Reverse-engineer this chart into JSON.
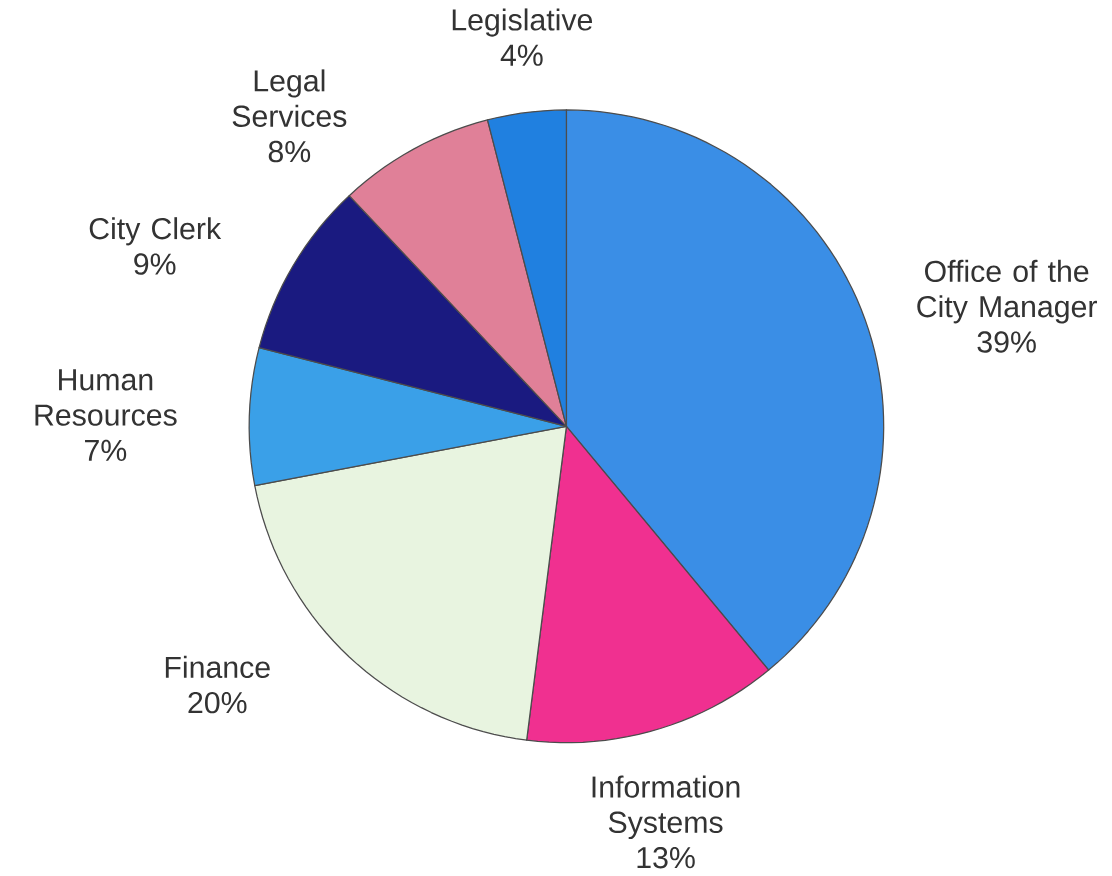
{
  "chart_data": {
    "type": "pie",
    "categories": [
      "Office of the City Manager",
      "Information Systems",
      "Finance",
      "Human Resources",
      "City Clerk",
      "Legal Services",
      "Legislative"
    ],
    "values": [
      39,
      13,
      20,
      7,
      9,
      8,
      4
    ],
    "value_labels": [
      "39%",
      "13%",
      "20%",
      "7%",
      "9%",
      "8%",
      "4%"
    ],
    "colors": [
      "#3a8ee6",
      "#f03090",
      "#e8f4e0",
      "#3aa0e8",
      "#1a1a80",
      "#e08098",
      "#2080e0"
    ]
  }
}
